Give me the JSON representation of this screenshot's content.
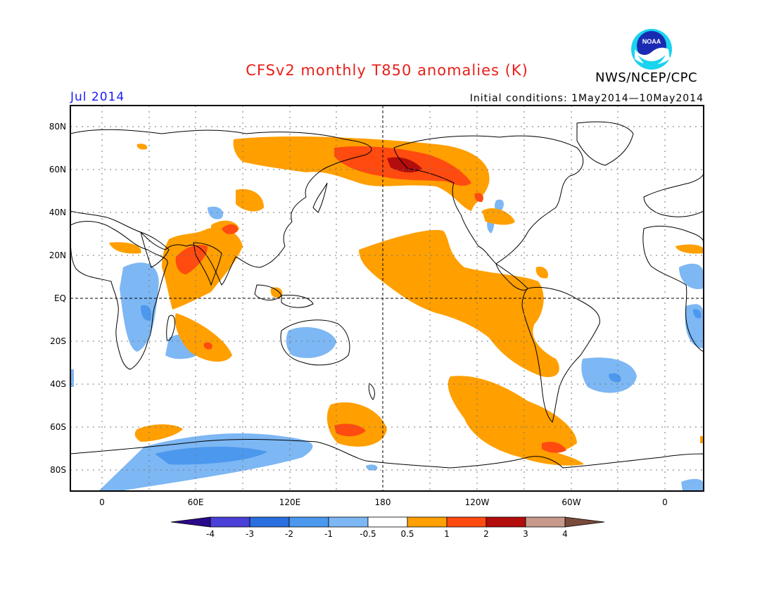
{
  "header": {
    "title": "CFSv2 monthly T850 anomalies (K)",
    "period": "Jul 2014",
    "initial_conditions": "Initial conditions: 1May2014—10May2014",
    "agency": "NWS/NCEP/CPC",
    "logo_text": "NOAA"
  },
  "map": {
    "lat_labels": [
      "80N",
      "60N",
      "40N",
      "20N",
      "EQ",
      "20S",
      "40S",
      "60S",
      "80S"
    ],
    "lon_labels": [
      "0",
      "60E",
      "120E",
      "180",
      "120W",
      "60W",
      "0"
    ],
    "projection": "cylindrical equidistant, centered 180",
    "grid": "dotted"
  },
  "colorbar": {
    "labels": [
      "-4",
      "-3",
      "-2",
      "-1",
      "-0.5",
      "0.5",
      "1",
      "2",
      "3",
      "4"
    ],
    "colors": {
      "lt_-4": "#2a0a8a",
      "-4_-3": "#4a3fd6",
      "-3_-2": "#2a6ee0",
      "-2_-1": "#4b98ee",
      "-1_-0.5": "#7db7f4",
      "-0.5_0.5": "#ffffff",
      "0.5_1": "#ff9f00",
      "1_2": "#ff4a10",
      "2_3": "#b30d0d",
      "3_4": "#c7998a",
      "gt_4": "#7a4a3a"
    }
  }
}
